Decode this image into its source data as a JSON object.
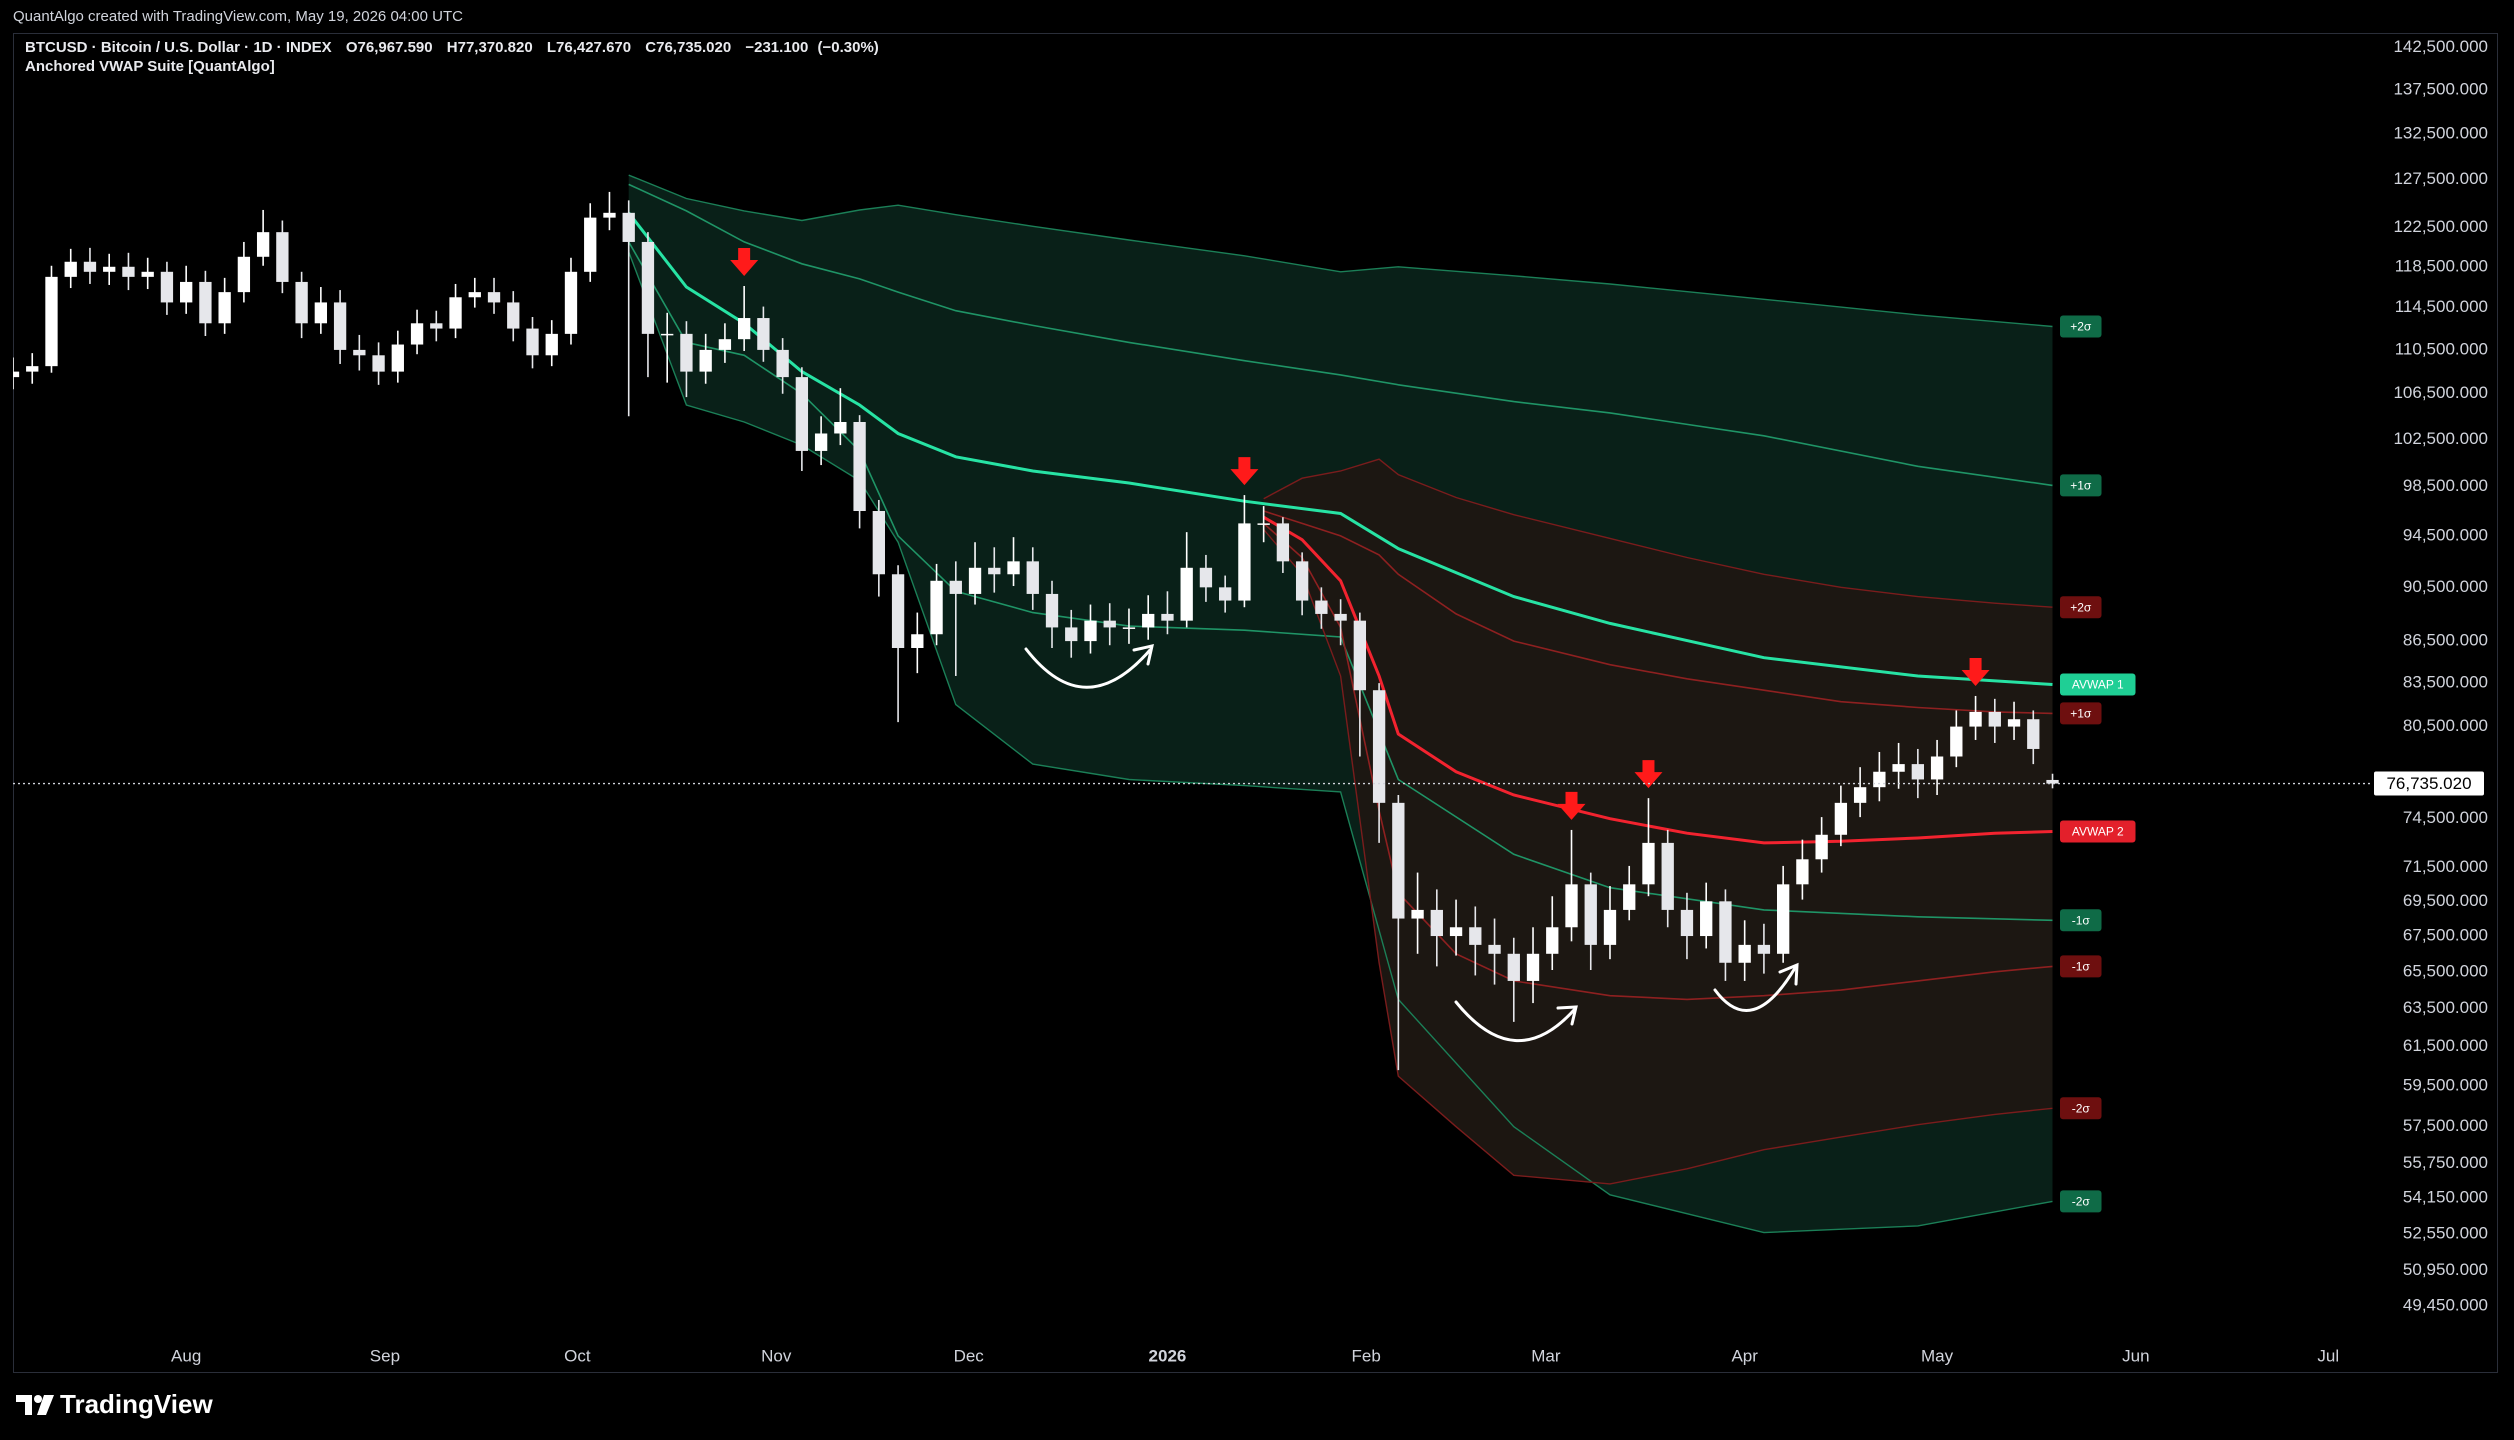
{
  "watermark": "QuantAlgo created with TradingView.com, May 19, 2026 04:00 UTC",
  "chart_data": {
    "type": "candlestick",
    "symbol": "BTCUSD · Bitcoin / U.S. Dollar · 1D · INDEX",
    "indicator": "Anchored VWAP Suite [QuantAlgo]",
    "ohlc_header": [
      {
        "value": 76967.59,
        "label": "O76,967.590"
      },
      {
        "value": 77370.82,
        "label": "H77,370.820"
      },
      {
        "value": 76427.67,
        "label": "L76,427.670"
      },
      {
        "value": 76735.02,
        "label": "C76,735.020"
      },
      {
        "value": -231.1,
        "label": "−231.100"
      },
      {
        "value": -0.3,
        "label": "(−0.30%)"
      }
    ],
    "up_color": "#ffffff",
    "down_color": "#e6e7eb",
    "open": [
      108000,
      108500,
      109000,
      117500,
      119000,
      118000,
      118500,
      117500,
      118000,
      115000,
      117000,
      113000,
      116000,
      119500,
      122000,
      117000,
      113000,
      115000,
      110500,
      110000,
      108500,
      111000,
      113000,
      112500,
      115500,
      116000,
      115000,
      112500,
      110000,
      112000,
      118000,
      123500,
      124000,
      121000,
      112000,
      112000,
      108500,
      110500,
      111500,
      113500,
      110500,
      108000,
      101500,
      103000,
      104000,
      96500,
      91500,
      86000,
      87000,
      91000,
      90000,
      92000,
      91500,
      92500,
      90000,
      87500,
      86500,
      88000,
      87500,
      87500,
      88500,
      88000,
      92000,
      90500,
      89500,
      95500,
      95500,
      92500,
      89500,
      88500,
      88000,
      83000,
      75500,
      68500,
      69000,
      67500,
      68000,
      67000,
      66500,
      65000,
      66500,
      68000,
      70500,
      67000,
      69000,
      70500,
      73000,
      69000,
      67500,
      69500,
      66000,
      67000,
      66500,
      70500,
      72000,
      73500,
      75500,
      76500,
      77500,
      78000,
      77000,
      78500,
      80500,
      81500,
      80500,
      81000,
      76967.59
    ],
    "high": [
      109800,
      110200,
      118600,
      120300,
      120400,
      119800,
      119900,
      119400,
      119000,
      118600,
      118100,
      117400,
      121000,
      124300,
      123200,
      118000,
      116500,
      116200,
      111900,
      111200,
      112300,
      114300,
      114200,
      116800,
      117400,
      117400,
      116100,
      113600,
      113300,
      119400,
      125000,
      126200,
      125300,
      122000,
      114000,
      113200,
      112000,
      113000,
      116600,
      114600,
      111600,
      108900,
      104500,
      107000,
      104600,
      97400,
      92200,
      88600,
      92300,
      92500,
      94000,
      93600,
      94400,
      93600,
      91000,
      88800,
      89200,
      89300,
      88900,
      89900,
      90200,
      94800,
      93000,
      91400,
      97800,
      96900,
      96000,
      93200,
      90500,
      89600,
      88600,
      83500,
      76000,
      71200,
      70200,
      69600,
      69200,
      68500,
      67400,
      68000,
      69800,
      73800,
      71200,
      70400,
      71600,
      75800,
      73800,
      70000,
      70600,
      70200,
      68400,
      68200,
      71600,
      73200,
      74600,
      76600,
      77800,
      78800,
      79400,
      79000,
      79600,
      81600,
      82600,
      82400,
      82200,
      81600,
      77370.82
    ],
    "low": [
      106900,
      107400,
      108400,
      116400,
      116800,
      116700,
      116200,
      116300,
      113800,
      113900,
      111800,
      112000,
      115000,
      118600,
      115900,
      111600,
      112000,
      109200,
      108600,
      107300,
      107500,
      110100,
      111300,
      111600,
      114500,
      113900,
      111300,
      108800,
      109000,
      111000,
      117000,
      122200,
      104500,
      108000,
      107500,
      106200,
      107400,
      109300,
      110400,
      109400,
      106500,
      99800,
      100300,
      102000,
      95100,
      89800,
      80800,
      84200,
      86200,
      84000,
      89200,
      90100,
      90600,
      88800,
      86000,
      85300,
      85600,
      86200,
      86300,
      86600,
      87000,
      87500,
      89400,
      88600,
      89000,
      94000,
      91600,
      88400,
      87400,
      86200,
      78500,
      73000,
      60300,
      66500,
      65800,
      66400,
      65300,
      64800,
      62800,
      63800,
      65600,
      67200,
      65600,
      66200,
      68400,
      69800,
      68000,
      66200,
      66800,
      65000,
      65000,
      65400,
      66000,
      69600,
      71200,
      72800,
      74600,
      75600,
      76400,
      75800,
      76000,
      77800,
      79600,
      79400,
      79600,
      78000,
      76427.67
    ],
    "close": [
      108500,
      109000,
      117500,
      119000,
      118000,
      118500,
      117500,
      118000,
      115000,
      117000,
      113000,
      116000,
      119500,
      122000,
      117000,
      113000,
      115000,
      110500,
      110000,
      108500,
      111000,
      113000,
      112500,
      115500,
      116000,
      115000,
      112500,
      110000,
      112000,
      118000,
      123500,
      124000,
      121000,
      112000,
      112000,
      108500,
      110500,
      111500,
      113500,
      110500,
      108000,
      101500,
      103000,
      104000,
      96500,
      91500,
      86000,
      87000,
      91000,
      90000,
      92000,
      91500,
      92500,
      90000,
      87500,
      86500,
      88000,
      87500,
      87500,
      88500,
      88000,
      92000,
      90500,
      89500,
      95500,
      95500,
      92500,
      89500,
      88500,
      88000,
      83000,
      75500,
      68500,
      69000,
      67500,
      68000,
      67000,
      66500,
      65000,
      66500,
      68000,
      70500,
      67000,
      69000,
      70500,
      73000,
      69000,
      67500,
      69500,
      66000,
      67000,
      66500,
      70500,
      72000,
      73500,
      75500,
      76500,
      77500,
      78000,
      77000,
      78500,
      80500,
      81500,
      80500,
      81000,
      79000,
      76735.02
    ],
    "xlim": [
      0,
      122.5
    ],
    "xticks": [
      {
        "value": 9,
        "label": "Aug"
      },
      {
        "value": 19.33,
        "label": "Sep"
      },
      {
        "value": 29.33,
        "label": "Oct"
      },
      {
        "value": 39.67,
        "label": "Nov"
      },
      {
        "value": 49.67,
        "label": "Dec"
      },
      {
        "value": 60,
        "label": "2026",
        "bold": true
      },
      {
        "value": 70.33,
        "label": "Feb"
      },
      {
        "value": 79.67,
        "label": "Mar"
      },
      {
        "value": 90,
        "label": "Apr"
      },
      {
        "value": 100,
        "label": "May"
      },
      {
        "value": 110.33,
        "label": "Jun"
      },
      {
        "value": 120.33,
        "label": "Jul"
      }
    ],
    "ylim": [
      48100,
      144000
    ],
    "log_scale": true,
    "grid": false,
    "yticks": [
      {
        "value": 142500,
        "label": "142,500.000"
      },
      {
        "value": 137500,
        "label": "137,500.000"
      },
      {
        "value": 132500,
        "label": "132,500.000"
      },
      {
        "value": 127500,
        "label": "127,500.000"
      },
      {
        "value": 122500,
        "label": "122,500.000"
      },
      {
        "value": 118500,
        "label": "118,500.000"
      },
      {
        "value": 114500,
        "label": "114,500.000"
      },
      {
        "value": 110500,
        "label": "110,500.000"
      },
      {
        "value": 106500,
        "label": "106,500.000"
      },
      {
        "value": 102500,
        "label": "102,500.000"
      },
      {
        "value": 98500,
        "label": "98,500.000"
      },
      {
        "value": 94500,
        "label": "94,500.000"
      },
      {
        "value": 90500,
        "label": "90,500.000"
      },
      {
        "value": 86500,
        "label": "86,500.000"
      },
      {
        "value": 83500,
        "label": "83,500.000"
      },
      {
        "value": 80500,
        "label": "80,500.000"
      },
      {
        "value": 74500,
        "label": "74,500.000"
      },
      {
        "value": 71500,
        "label": "71,500.000"
      },
      {
        "value": 69500,
        "label": "69,500.000"
      },
      {
        "value": 67500,
        "label": "67,500.000"
      },
      {
        "value": 65500,
        "label": "65,500.000"
      },
      {
        "value": 63500,
        "label": "63,500.000"
      },
      {
        "value": 61500,
        "label": "61,500.000"
      },
      {
        "value": 59500,
        "label": "59,500.000"
      },
      {
        "value": 57500,
        "label": "57,500.000"
      },
      {
        "value": 55750,
        "label": "55,750.000"
      },
      {
        "value": 54150,
        "label": "54,150.000"
      },
      {
        "value": 52550,
        "label": "52,550.000"
      },
      {
        "value": 50950,
        "label": "50,950.000"
      },
      {
        "value": 49450,
        "label": "49,450.000"
      }
    ],
    "last_price": {
      "value": 76735.02,
      "label": "76,735.020"
    },
    "vwaps": [
      {
        "fill": "#0a2219",
        "x": [
          32,
          35,
          38,
          41,
          44,
          46,
          49,
          53,
          58,
          64,
          69,
          72,
          78,
          83,
          91,
          99,
          106
        ],
        "lines": [
          {
            "name": "+2σ",
            "color": "#1b7f57",
            "label_color": "#0f6b47",
            "width": 1.4,
            "values": [
              128000,
              125500,
              124200,
              123200,
              124300,
              124800,
              123800,
              122600,
              121200,
              119600,
              118000,
              118500,
              117600,
              116800,
              115300,
              113800,
              112700
            ]
          },
          {
            "name": "+1σ",
            "color": "#1f9466",
            "label_color": "#0f6b47",
            "width": 1.6,
            "values": [
              127000,
              124200,
              121000,
              118800,
              117300,
              116000,
              114200,
              112800,
              111200,
              109500,
              108200,
              107300,
              105800,
              104800,
              102800,
              100200,
              98600
            ]
          },
          {
            "name": "AVWAP 1",
            "color": "#27e3a4",
            "label_color": "#1fcf95",
            "width": 3,
            "values": [
              124000,
              116500,
              113000,
              108500,
              105500,
              103000,
              101000,
              99800,
              98800,
              97300,
              96300,
              93500,
              89800,
              87800,
              85300,
              84000,
              83400
            ]
          },
          {
            "name": "-1σ",
            "color": "#1f9466",
            "label_color": "#0f6b47",
            "width": 1.6,
            "values": [
              121000,
              111200,
              110000,
              106500,
              101500,
              94500,
              90200,
              88600,
              87600,
              87300,
              86800,
              77000,
              72300,
              70300,
              69000,
              68600,
              68400
            ]
          },
          {
            "name": "-2σ",
            "color": "#1b7f57",
            "label_color": "#0f6b47",
            "width": 1.4,
            "values": [
              120000,
              105500,
              104000,
              102000,
              99000,
              94000,
              82000,
              78000,
              77000,
              76600,
              76200,
              64000,
              57500,
              54300,
              52600,
              52900,
              54000
            ]
          }
        ]
      },
      {
        "fill": "#1d1712",
        "x": [
          65,
          67,
          69,
          71,
          72,
          75,
          78,
          83,
          87,
          91,
          95,
          99,
          103,
          106
        ],
        "lines": [
          {
            "name": "+2σ",
            "color": "#7a1c1c",
            "label_color": "#6e0f0f",
            "width": 1.4,
            "values": [
              97500,
              99200,
              99800,
              100800,
              99500,
              97600,
              96200,
              94300,
              92800,
              91500,
              90500,
              89800,
              89300,
              89000
            ]
          },
          {
            "name": "+1σ",
            "color": "#8e2020",
            "label_color": "#6e0f0f",
            "width": 1.6,
            "values": [
              96500,
              95500,
              94500,
              93000,
              91500,
              88500,
              86500,
              84800,
              83800,
              83000,
              82200,
              81800,
              81500,
              81400
            ]
          },
          {
            "name": "AVWAP 2",
            "color": "#f2232f",
            "label_color": "#e3202b",
            "width": 3,
            "values": [
              96000,
              94200,
              91000,
              84000,
              80000,
              77500,
              76000,
              74500,
              73600,
              73000,
              73100,
              73300,
              73600,
              73700
            ]
          },
          {
            "name": "-1σ",
            "color": "#8e2020",
            "label_color": "#6e0f0f",
            "width": 1.6,
            "values": [
              95500,
              92800,
              87500,
              75000,
              70000,
              66500,
              65000,
              64200,
              64000,
              64200,
              64500,
              65000,
              65500,
              65800
            ]
          },
          {
            "name": "-2σ",
            "color": "#7a1c1c",
            "label_color": "#6e0f0f",
            "width": 1.4,
            "values": [
              95000,
              91500,
              84000,
              66000,
              60000,
              57500,
              55200,
              54800,
              55500,
              56400,
              57000,
              57600,
              58100,
              58400
            ]
          }
        ]
      }
    ],
    "signals": {
      "color": "#ff1a1a",
      "x": [
        38,
        64,
        81,
        85,
        102
      ]
    }
  },
  "footer": {
    "logo_text": "TradingView"
  }
}
